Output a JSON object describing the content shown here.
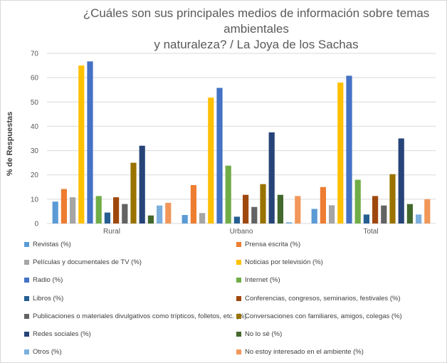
{
  "chart_data": {
    "type": "bar",
    "title": "¿Cuáles son sus principales medios de información sobre temas ambientales y naturaleza? / La Joya de los Sachas",
    "title_lines": [
      "¿Cuáles son sus principales medios de información sobre temas ambientales",
      "y naturaleza? / La Joya de los Sachas"
    ],
    "ylabel": "% de Respuestas",
    "xlabel": "",
    "ylim": [
      0,
      70
    ],
    "yticks": [
      "0",
      "10",
      "20",
      "30",
      "40",
      "50",
      "60",
      "70"
    ],
    "grid": true,
    "legend_position": "bottom",
    "categories": [
      "Rural",
      "Urbano",
      "Total"
    ],
    "series": [
      {
        "name": "Revistas (%)",
        "color": "#5b9bd5",
        "values": [
          9,
          3.5,
          6
        ]
      },
      {
        "name": "Prensa escrita (%)",
        "color": "#ed7d31",
        "values": [
          14.2,
          15.8,
          15
        ]
      },
      {
        "name": "Películas y documentales de TV (%)",
        "color": "#a5a5a5",
        "values": [
          10.8,
          4.3,
          7.5
        ]
      },
      {
        "name": "Noticias por televisión (%)",
        "color": "#ffc000",
        "values": [
          65,
          51.8,
          58
        ]
      },
      {
        "name": "Radio (%)",
        "color": "#4472c4",
        "values": [
          66.7,
          55.8,
          60.8
        ]
      },
      {
        "name": "Internet (%)",
        "color": "#70ad47",
        "values": [
          11.3,
          23.8,
          18
        ]
      },
      {
        "name": "Libros (%)",
        "color": "#255e91",
        "values": [
          4.5,
          2.8,
          3.7
        ]
      },
      {
        "name": "Conferencias, congresos, seminarios, festivales (%)",
        "color": "#9e480e",
        "values": [
          10.8,
          11.8,
          11.3
        ]
      },
      {
        "name": "Publicaciones o materiales divulgativos como trípticos, folletos, etc. (%)",
        "color": "#636363",
        "values": [
          8,
          6.8,
          7.4
        ]
      },
      {
        "name": "Conversaciones con familiares, amigos, colegas (%)",
        "color": "#997300",
        "values": [
          25,
          16.2,
          20.3
        ]
      },
      {
        "name": "Redes sociales (%)",
        "color": "#264478",
        "values": [
          32,
          37.5,
          35
        ]
      },
      {
        "name": "No lo sé (%)",
        "color": "#43682b",
        "values": [
          3.3,
          11.8,
          8
        ]
      },
      {
        "name": "Otros (%)",
        "color": "#7cafdd",
        "values": [
          7.4,
          0.5,
          3.7
        ]
      },
      {
        "name": "No estoy interesado en el ambiente (%)",
        "color": "#f1975a",
        "values": [
          8.5,
          11.3,
          10
        ]
      }
    ]
  }
}
